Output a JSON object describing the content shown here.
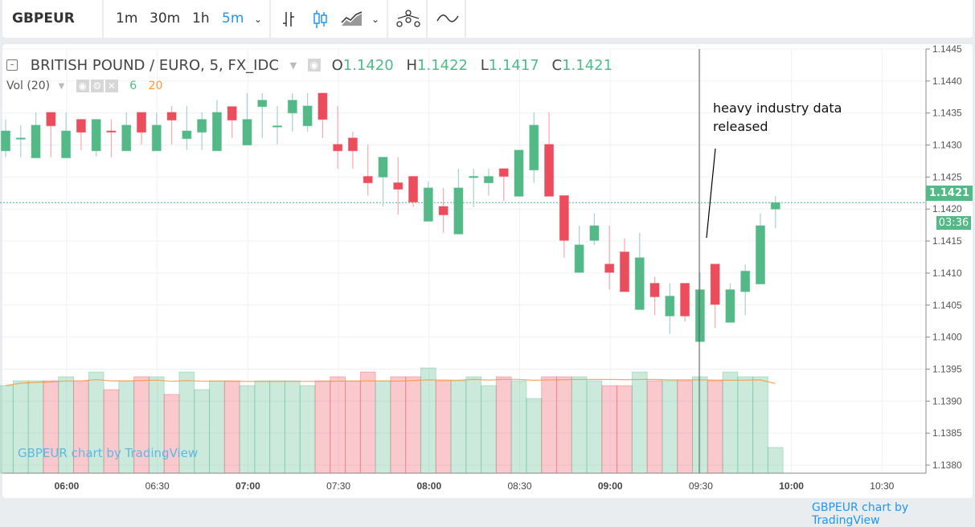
{
  "toolbar": {
    "symbol": "GBPEUR",
    "intervals": [
      "1m",
      "30m",
      "1h",
      "5m"
    ],
    "active_interval": "5m",
    "icons": [
      "chevron-down-icon",
      "bar-chart-icon",
      "candlestick-icon",
      "area-chart-icon",
      "chevron-down-icon",
      "compare-icon",
      "indicators-icon"
    ]
  },
  "legend": {
    "title": "BRITISH POUND / EURO, 5, FX_IDC",
    "o_label": "O",
    "o": "1.1420",
    "h_label": "H",
    "h": "1.1422",
    "l_label": "L",
    "l": "1.1417",
    "c_label": "C",
    "c": "1.1421"
  },
  "volume_legend": {
    "label": "Vol (20)",
    "value": "6",
    "ma": "20"
  },
  "annotation": {
    "line1": "heavy industry data",
    "line2": "released"
  },
  "watermark": "GBPEUR chart by TradingView",
  "footer_link": "GBPEUR chart by TradingView",
  "last_price": "1.1421",
  "countdown": "03:36",
  "colors": {
    "up": "#53b987",
    "down": "#eb4d5c",
    "ma": "#ff9640",
    "accent": "#2196f3"
  },
  "chart_data": {
    "type": "candlestick",
    "interval": "5m",
    "first_bar_time": "05:40",
    "y_ticks": [
      "1.1445",
      "1.1440",
      "1.1435",
      "1.1430",
      "1.1425",
      "1.1420",
      "1.1415",
      "1.1410",
      "1.1405",
      "1.1400",
      "1.1395",
      "1.1390",
      "1.1385",
      "1.1380"
    ],
    "ylim": [
      1.138,
      1.1445
    ],
    "x_ticks": [
      "06:00",
      "06:30",
      "07:00",
      "07:30",
      "08:00",
      "08:30",
      "09:00",
      "09:30",
      "10:00",
      "10:30"
    ],
    "crosshair_time": "09:30",
    "ohlc": [
      [
        1.14291,
        1.1434,
        1.14281,
        1.14322
      ],
      [
        1.14311,
        1.14331,
        1.14281,
        1.14311
      ],
      [
        1.1428,
        1.14351,
        1.1428,
        1.14331
      ],
      [
        1.14351,
        1.14351,
        1.14281,
        1.1433
      ],
      [
        1.1428,
        1.14351,
        1.1428,
        1.14322
      ],
      [
        1.1434,
        1.1434,
        1.14292,
        1.1432
      ],
      [
        1.14291,
        1.1434,
        1.14282,
        1.1434
      ],
      [
        1.14322,
        1.1434,
        1.14281,
        1.14321
      ],
      [
        1.14291,
        1.14351,
        1.14291,
        1.14331
      ],
      [
        1.14351,
        1.14351,
        1.14301,
        1.1432
      ],
      [
        1.14291,
        1.14351,
        1.14291,
        1.14331
      ],
      [
        1.14351,
        1.14361,
        1.14301,
        1.14339
      ],
      [
        1.1431,
        1.14361,
        1.14292,
        1.14322
      ],
      [
        1.1432,
        1.14351,
        1.14292,
        1.1434
      ],
      [
        1.14291,
        1.1437,
        1.14291,
        1.14351
      ],
      [
        1.1436,
        1.1436,
        1.14311,
        1.14339
      ],
      [
        1.143,
        1.14381,
        1.143,
        1.1434
      ],
      [
        1.1436,
        1.14381,
        1.14311,
        1.1437
      ],
      [
        1.1433,
        1.14361,
        1.14301,
        1.1433
      ],
      [
        1.1435,
        1.14381,
        1.14321,
        1.1437
      ],
      [
        1.1433,
        1.14381,
        1.14321,
        1.14361
      ],
      [
        1.14381,
        1.14381,
        1.14311,
        1.1434
      ],
      [
        1.14301,
        1.14361,
        1.14263,
        1.14291
      ],
      [
        1.14311,
        1.14321,
        1.14263,
        1.14291
      ],
      [
        1.14251,
        1.14301,
        1.14221,
        1.14241
      ],
      [
        1.1425,
        1.14281,
        1.14204,
        1.14281
      ],
      [
        1.14241,
        1.14281,
        1.14191,
        1.14231
      ],
      [
        1.14251,
        1.14251,
        1.14203,
        1.14211
      ],
      [
        1.14181,
        1.14243,
        1.14181,
        1.14233
      ],
      [
        1.14204,
        1.14233,
        1.14163,
        1.14191
      ],
      [
        1.14161,
        1.14263,
        1.14161,
        1.14233
      ],
      [
        1.14251,
        1.14263,
        1.14203,
        1.14251
      ],
      [
        1.14241,
        1.14263,
        1.14221,
        1.14251
      ],
      [
        1.14263,
        1.14263,
        1.14213,
        1.14251
      ],
      [
        1.1422,
        1.14292,
        1.1422,
        1.14292
      ],
      [
        1.14261,
        1.14351,
        1.14241,
        1.14331
      ],
      [
        1.14301,
        1.14351,
        1.1422,
        1.1422
      ],
      [
        1.14221,
        1.14221,
        1.14124,
        1.14151
      ],
      [
        1.14101,
        1.14174,
        1.14101,
        1.14144
      ],
      [
        1.14151,
        1.14193,
        1.14144,
        1.14174
      ],
      [
        1.14114,
        1.14174,
        1.14074,
        1.14101
      ],
      [
        1.14133,
        1.14154,
        1.14071,
        1.14071
      ],
      [
        1.14043,
        1.14163,
        1.14043,
        1.14124
      ],
      [
        1.14084,
        1.14094,
        1.14034,
        1.14063
      ],
      [
        1.14033,
        1.14084,
        1.14005,
        1.14064
      ],
      [
        1.14084,
        1.14084,
        1.14024,
        1.14033
      ],
      [
        1.13993,
        1.14101,
        1.13993,
        1.14074
      ],
      [
        1.14114,
        1.14114,
        1.14014,
        1.14051
      ],
      [
        1.14023,
        1.14084,
        1.14023,
        1.14074
      ],
      [
        1.14071,
        1.14114,
        1.14034,
        1.14103
      ],
      [
        1.14083,
        1.14193,
        1.14083,
        1.14174
      ],
      [
        1.142,
        1.1422,
        1.1417,
        1.1421
      ]
    ],
    "volume_relative": [
      109,
      115,
      115,
      115,
      120,
      115,
      126,
      104,
      115,
      120,
      120,
      98,
      126,
      104,
      115,
      115,
      109,
      115,
      115,
      115,
      109,
      115,
      120,
      115,
      126,
      115,
      120,
      120,
      131,
      115,
      115,
      120,
      109,
      120,
      115,
      93,
      120,
      120,
      120,
      115,
      109,
      109,
      126,
      115,
      115,
      115,
      120,
      115,
      126,
      120,
      120,
      32
    ],
    "volume_ma_period": 20
  }
}
